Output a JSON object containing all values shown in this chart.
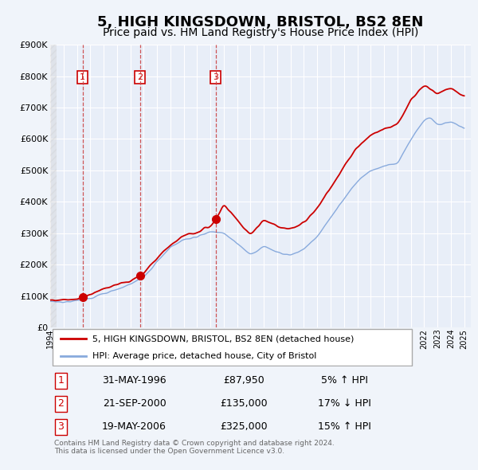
{
  "title": "5, HIGH KINGSDOWN, BRISTOL, BS2 8EN",
  "subtitle": "Price paid vs. HM Land Registry's House Price Index (HPI)",
  "title_fontsize": 13,
  "subtitle_fontsize": 10,
  "legend_label_red": "5, HIGH KINGSDOWN, BRISTOL, BS2 8EN (detached house)",
  "legend_label_blue": "HPI: Average price, detached house, City of Bristol",
  "footer": "Contains HM Land Registry data © Crown copyright and database right 2024.\nThis data is licensed under the Open Government Licence v3.0.",
  "transactions": [
    {
      "num": 1,
      "date": "31-MAY-1996",
      "price": 87950,
      "pct": "5%",
      "dir": "↑",
      "year_x": 1996.42
    },
    {
      "num": 2,
      "date": "21-SEP-2000",
      "price": 135000,
      "pct": "17%",
      "dir": "↓",
      "year_x": 2000.72
    },
    {
      "num": 3,
      "date": "19-MAY-2006",
      "price": 325000,
      "pct": "15%",
      "dir": "↑",
      "year_x": 2006.38
    }
  ],
  "ylim": [
    0,
    900000
  ],
  "yticks": [
    0,
    100000,
    200000,
    300000,
    400000,
    500000,
    600000,
    700000,
    800000,
    900000
  ],
  "xlim_start": 1994.0,
  "xlim_end": 2025.5,
  "background_color": "#f0f4fa",
  "chart_bg": "#e8eef8",
  "grid_color": "#ffffff",
  "red_color": "#cc0000",
  "blue_color": "#88aadd",
  "marker_color": "#cc0000",
  "dashed_color": "#cc4444",
  "transaction_box_color": "#cc0000"
}
